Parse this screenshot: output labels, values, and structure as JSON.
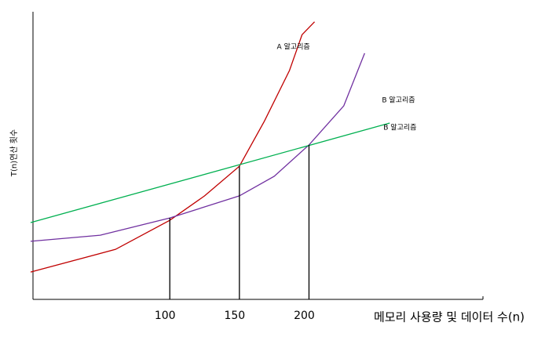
{
  "chart_data": {
    "type": "line",
    "x_label": "메모리 사용량 및 데이터 수(n)",
    "y_label": "T(n)연산 횟수",
    "xlim": [
      0,
      325
    ],
    "xticks": [
      100,
      150,
      200
    ],
    "ylim": [
      0,
      100
    ],
    "series": [
      {
        "name": "A 알고리즘",
        "color": "#c00000",
        "x": [
          0,
          61,
          100,
          125,
          150,
          168,
          186,
          195,
          204
        ],
        "values": [
          9.5,
          17.4,
          27.5,
          36,
          46.3,
          62,
          79.6,
          92,
          96.5
        ]
      },
      {
        "name": "B 알고리즘",
        "color": "#7030a0",
        "x": [
          0,
          50,
          100,
          150,
          175,
          200,
          225,
          240
        ],
        "values": [
          20.2,
          22.3,
          28.3,
          36,
          42.8,
          53.7,
          67.3,
          85.6
        ]
      },
      {
        "name": "B 알고리즘",
        "color": "#00b050",
        "x": [
          0,
          258
        ],
        "values": [
          26.7,
          61.3
        ]
      }
    ]
  }
}
